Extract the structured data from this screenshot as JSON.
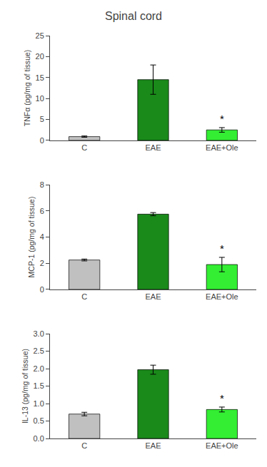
{
  "chart_data": [
    {
      "type": "bar",
      "title": "Spinal cord",
      "ylabel": "TNFα (pg/mg of tissue)",
      "categories": [
        "C",
        "EAE",
        "EAE+Ole"
      ],
      "values": [
        0.9,
        14.5,
        2.5
      ],
      "errors": [
        0.15,
        3.5,
        0.55
      ],
      "colors": [
        "#c0c0c0",
        "#1a8a1a",
        "#33ee33"
      ],
      "ylim": [
        0,
        25
      ],
      "yticks": [
        0,
        5,
        10,
        15,
        20,
        25
      ],
      "grid": false,
      "annotations": [
        {
          "x": "EAE+Ole",
          "text": "*"
        }
      ]
    },
    {
      "type": "bar",
      "ylabel": "MCP-1 (pg/mg of tissue)",
      "categories": [
        "C",
        "EAE",
        "EAE+Ole"
      ],
      "values": [
        2.25,
        5.75,
        1.9
      ],
      "errors": [
        0.07,
        0.12,
        0.55
      ],
      "colors": [
        "#c0c0c0",
        "#1a8a1a",
        "#33ee33"
      ],
      "ylim": [
        0,
        8
      ],
      "yticks": [
        0,
        2,
        4,
        6,
        8
      ],
      "grid": false,
      "annotations": [
        {
          "x": "EAE+Ole",
          "text": "*"
        }
      ]
    },
    {
      "type": "bar",
      "ylabel": "IL-13 (pg/mg of tissue)",
      "categories": [
        "C",
        "EAE",
        "EAE+Ole"
      ],
      "values": [
        0.7,
        1.97,
        0.83
      ],
      "errors": [
        0.05,
        0.13,
        0.07
      ],
      "colors": [
        "#c0c0c0",
        "#1a8a1a",
        "#33ee33"
      ],
      "ylim": [
        0,
        3.0
      ],
      "yticks": [
        {
          "value": 0.0,
          "label": "0.0"
        },
        0.5,
        {
          "value": 1.0,
          "label": "1.0"
        },
        1.5,
        {
          "value": 2.0,
          "label": "2.0"
        },
        2.5,
        {
          "value": 3.0,
          "label": "3.0"
        }
      ],
      "grid": false,
      "annotations": [
        {
          "x": "EAE+Ole",
          "text": "*"
        }
      ]
    }
  ]
}
